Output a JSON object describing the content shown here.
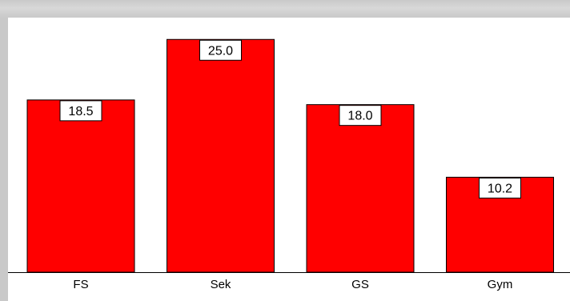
{
  "chart_data": {
    "type": "bar",
    "categories": [
      "FS",
      "Sek",
      "GS",
      "Gym"
    ],
    "values": [
      18.5,
      25.0,
      18.0,
      10.2
    ],
    "data_labels": [
      "18.5",
      "25.0",
      "18.0",
      "10.2"
    ],
    "title": "",
    "xlabel": "",
    "ylabel": "",
    "ylim": [
      0,
      27
    ],
    "grid": false,
    "legend": "none"
  },
  "colors": {
    "bar_fill": "#ff0000",
    "bar_stroke": "#000000",
    "label_box_fill": "#ffffff",
    "background_gray": "#c9c9c9"
  }
}
